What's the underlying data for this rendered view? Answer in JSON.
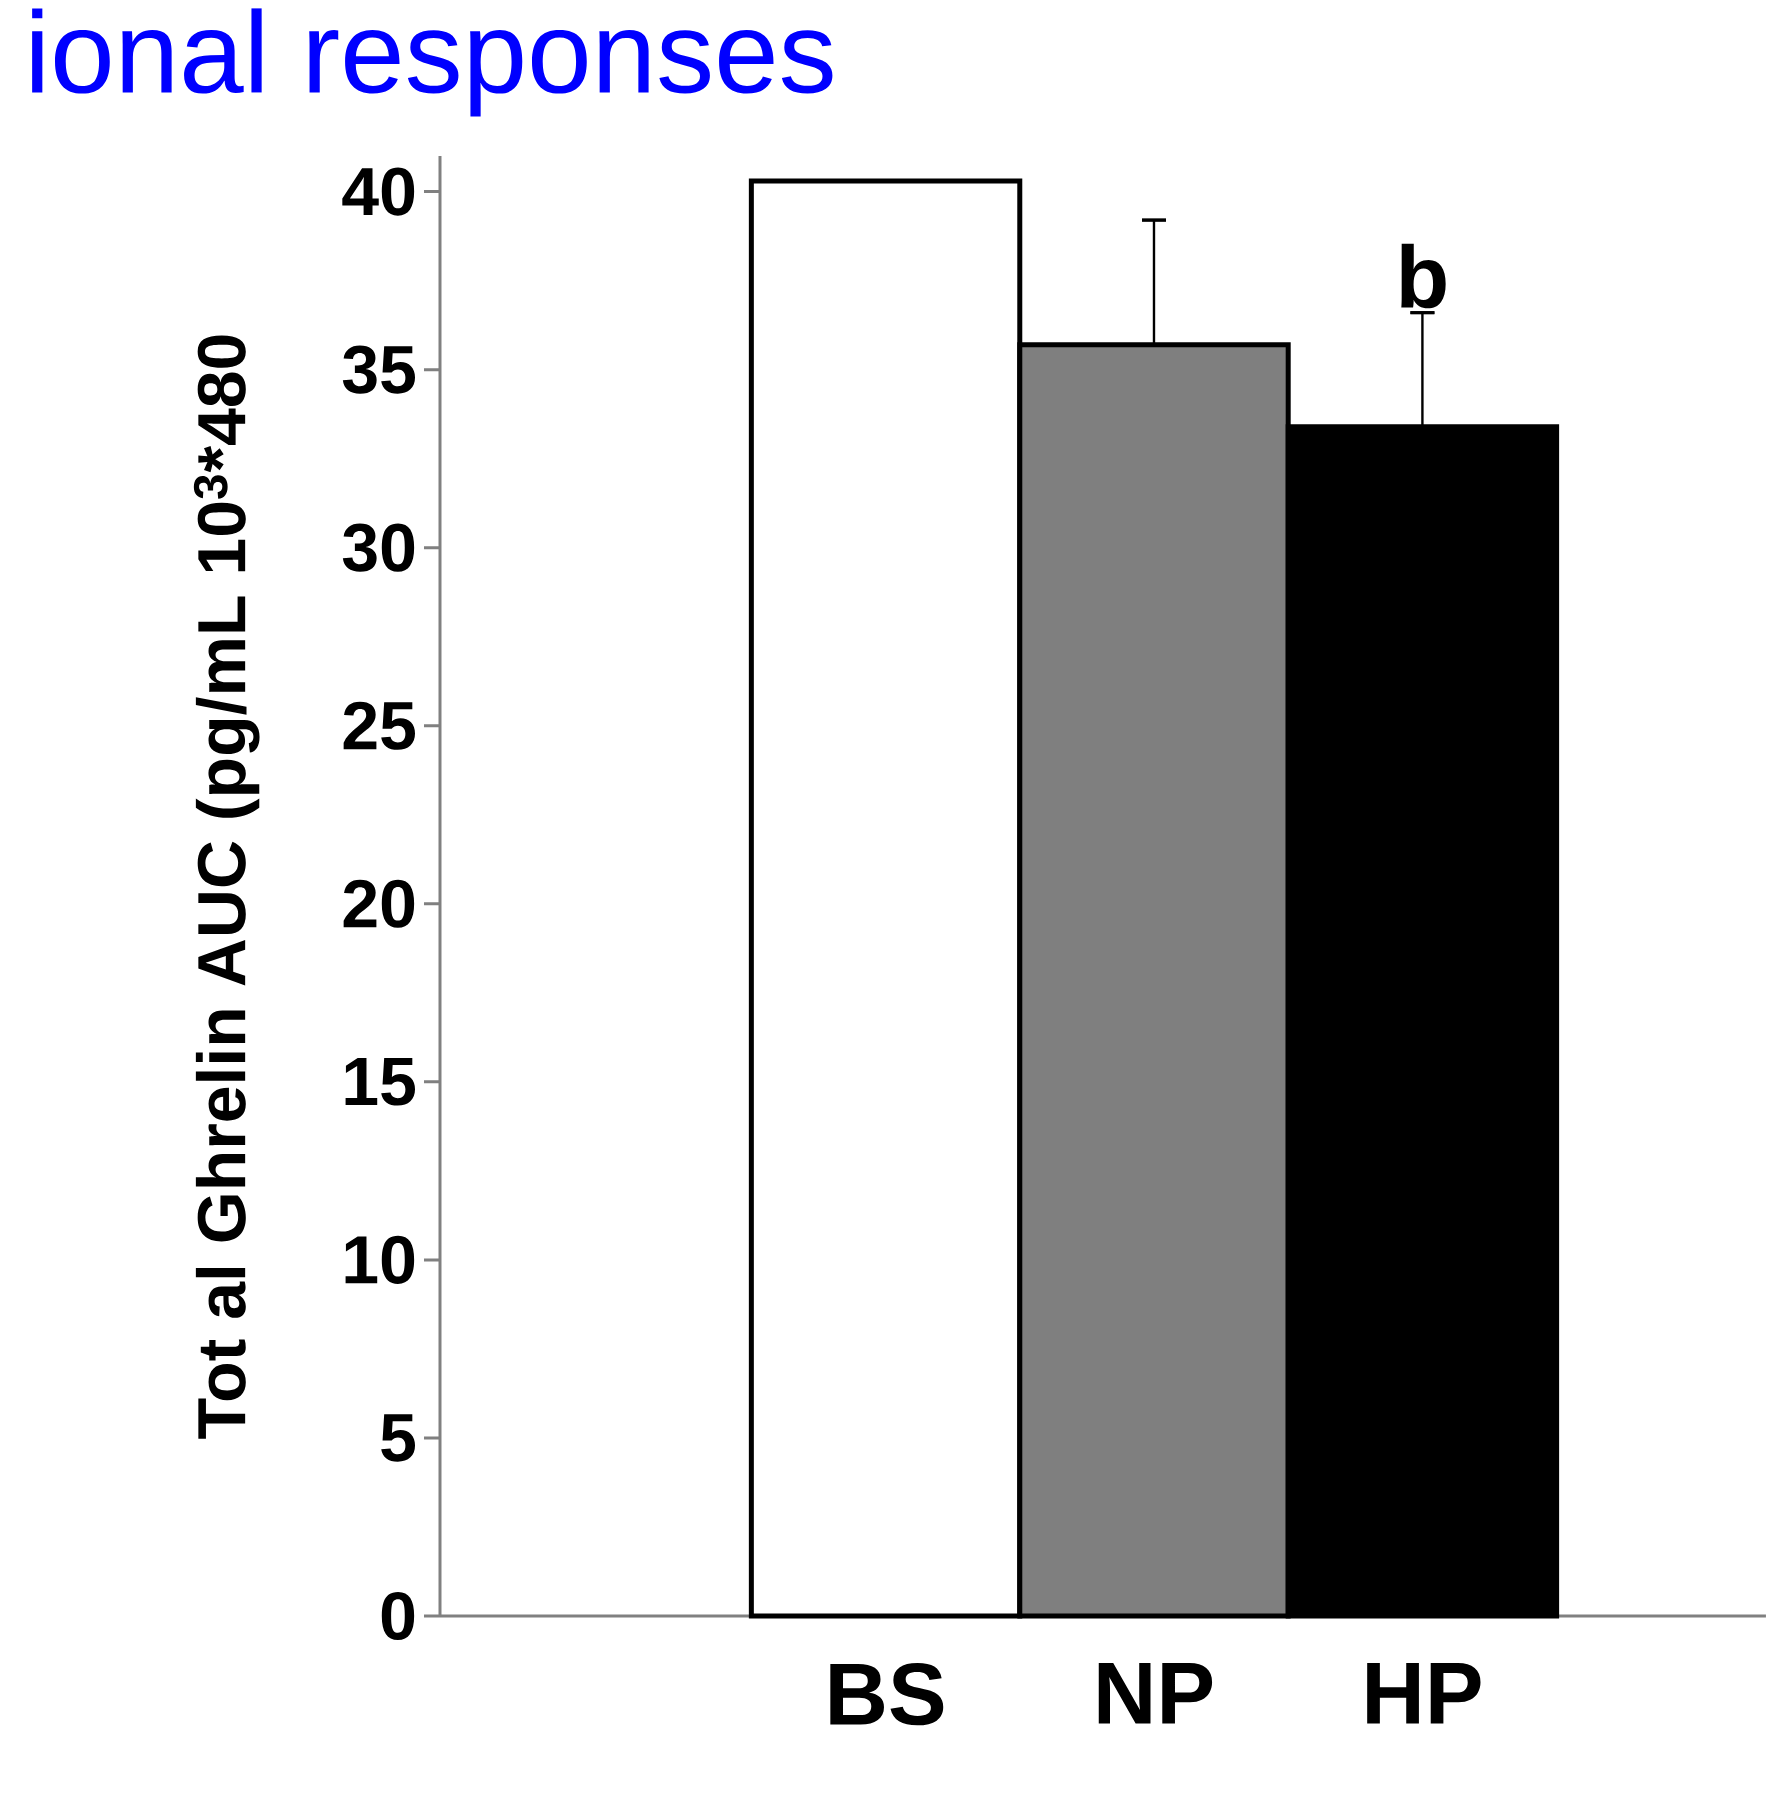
{
  "chart_data": {
    "type": "bar",
    "title": "ional responses",
    "ylabel": "Tot al Ghrelin AUC (pg/mL 10$^{3}$*480",
    "categories": [
      "BS",
      "NP",
      "HP"
    ],
    "values": [
      40.3,
      35.7,
      33.4
    ],
    "colors": [
      "#ffffff",
      "#7f7f7f",
      "#000000"
    ],
    "errors": [
      null,
      [
        35.7,
        39.2
      ],
      [
        33.4,
        36.6
      ]
    ],
    "ylim": [
      0,
      41
    ],
    "yticks": [
      0,
      5,
      10,
      15,
      20,
      25,
      30,
      35,
      40
    ],
    "annotations": [
      {
        "text": "b",
        "x": "HP",
        "y": 36.6
      }
    ],
    "grid": false
  }
}
